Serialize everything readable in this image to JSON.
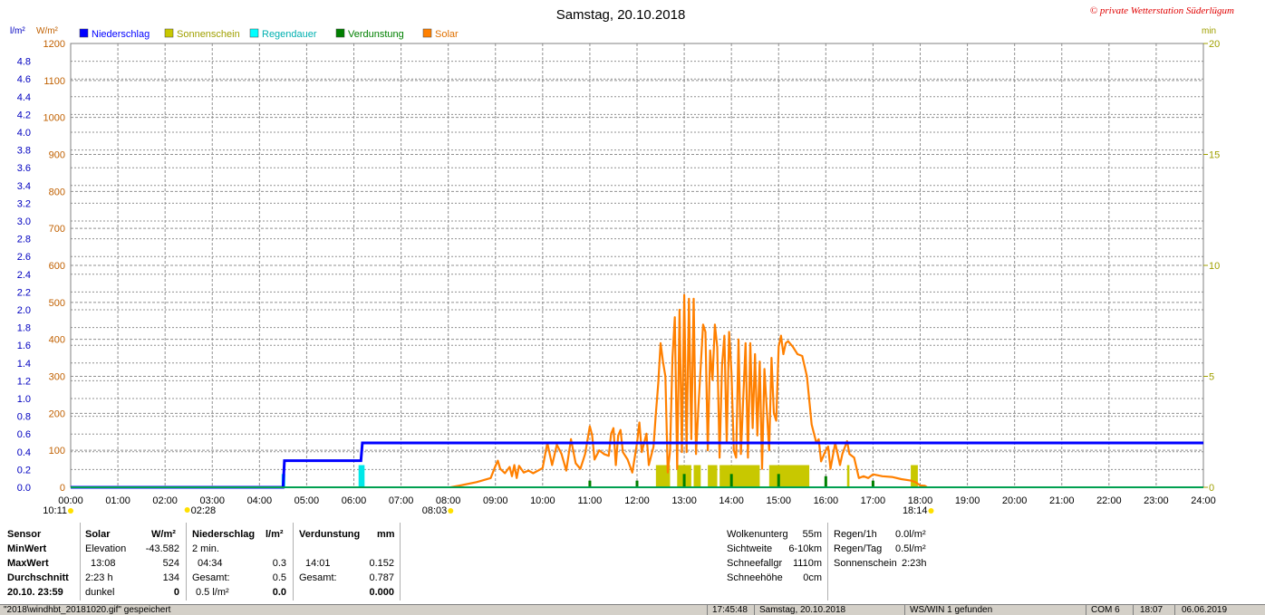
{
  "title": "Samstag, 20.10.2018",
  "copyright": "© private Wetterstation Süderlügum",
  "units": {
    "left1": "l/m²",
    "left2": "W/m²",
    "right": "min"
  },
  "legend": [
    {
      "label": "Niederschlag",
      "color": "#0000ff"
    },
    {
      "label": "Sonnenschein",
      "color": "#c8c800"
    },
    {
      "label": "Regendauer",
      "color": "#00ffff"
    },
    {
      "label": "Verdunstung",
      "color": "#008000"
    },
    {
      "label": "Solar",
      "color": "#ff8000"
    }
  ],
  "colors": {
    "precip": "#0000ff",
    "sun": "#c8c800",
    "rainDur": "#00e8e8",
    "evap": "#008000",
    "solar": "#ff8000",
    "grid": "#909090",
    "axisSolar": "#c06000",
    "axisPrecip": "#0000c0",
    "axisMin": "#a0a000"
  },
  "chart_data": {
    "type": "line",
    "x_range": [
      0,
      24
    ],
    "x_ticks": [
      "00:00",
      "01:00",
      "02:00",
      "03:00",
      "04:00",
      "05:00",
      "06:00",
      "07:00",
      "08:00",
      "09:00",
      "10:00",
      "11:00",
      "12:00",
      "13:00",
      "14:00",
      "15:00",
      "16:00",
      "17:00",
      "18:00",
      "19:00",
      "20:00",
      "21:00",
      "22:00",
      "23:00",
      "24:00"
    ],
    "y_precip_ticks": [
      "0.0",
      "0.2",
      "0.4",
      "0.6",
      "0.8",
      "1.0",
      "1.2",
      "1.4",
      "1.6",
      "1.8",
      "2.0",
      "2.2",
      "2.4",
      "2.6",
      "2.8",
      "3.0",
      "3.2",
      "3.4",
      "3.6",
      "3.8",
      "4.0",
      "4.2",
      "4.4",
      "4.6",
      "4.8"
    ],
    "y_precip_range": [
      0,
      5.0
    ],
    "y_solar_ticks": [
      "0",
      "100",
      "200",
      "300",
      "400",
      "500",
      "600",
      "700",
      "800",
      "900",
      "1000",
      "1100",
      "1200"
    ],
    "y_solar_range": [
      0,
      1200
    ],
    "y_min_ticks": [
      "0",
      "5",
      "10",
      "15",
      "20"
    ],
    "y_min_range": [
      0,
      20
    ],
    "grid": true,
    "precip": [
      [
        0,
        0
      ],
      [
        4.5,
        0
      ],
      [
        4.53,
        0.3
      ],
      [
        6.15,
        0.3
      ],
      [
        6.18,
        0.5
      ],
      [
        24,
        0.5
      ]
    ],
    "rain_duration": [
      [
        4.47,
        0.6
      ],
      [
        6.1,
        1.0
      ],
      [
        6.15,
        1.0
      ]
    ],
    "evaporation": [
      [
        11.0,
        0.3
      ],
      [
        12.0,
        0.3
      ],
      [
        13.0,
        0.6
      ],
      [
        14.0,
        0.6
      ],
      [
        15.0,
        0.6
      ],
      [
        16.0,
        0.5
      ],
      [
        17.0,
        0.3
      ]
    ],
    "sunshine": [
      [
        12.4,
        12.7,
        1.0
      ],
      [
        12.85,
        13.15,
        1.0
      ],
      [
        13.2,
        13.35,
        1.0
      ],
      [
        13.5,
        13.7,
        1.0
      ],
      [
        13.75,
        14.6,
        1.0
      ],
      [
        14.8,
        15.65,
        1.0
      ],
      [
        16.45,
        16.5,
        1.0
      ],
      [
        17.8,
        17.95,
        1.0
      ]
    ],
    "solar": [
      [
        8.05,
        0
      ],
      [
        8.3,
        6
      ],
      [
        8.6,
        14
      ],
      [
        8.9,
        25
      ],
      [
        9.0,
        58
      ],
      [
        9.05,
        72
      ],
      [
        9.1,
        50
      ],
      [
        9.2,
        38
      ],
      [
        9.3,
        55
      ],
      [
        9.35,
        30
      ],
      [
        9.4,
        60
      ],
      [
        9.45,
        25
      ],
      [
        9.5,
        58
      ],
      [
        9.6,
        40
      ],
      [
        9.7,
        45
      ],
      [
        9.8,
        38
      ],
      [
        10.0,
        52
      ],
      [
        10.1,
        120
      ],
      [
        10.2,
        60
      ],
      [
        10.3,
        115
      ],
      [
        10.4,
        90
      ],
      [
        10.5,
        45
      ],
      [
        10.6,
        130
      ],
      [
        10.7,
        65
      ],
      [
        10.8,
        50
      ],
      [
        10.9,
        90
      ],
      [
        11.0,
        165
      ],
      [
        11.05,
        140
      ],
      [
        11.1,
        75
      ],
      [
        11.2,
        100
      ],
      [
        11.3,
        90
      ],
      [
        11.4,
        85
      ],
      [
        11.45,
        145
      ],
      [
        11.5,
        160
      ],
      [
        11.55,
        60
      ],
      [
        11.6,
        140
      ],
      [
        11.65,
        155
      ],
      [
        11.7,
        95
      ],
      [
        11.8,
        75
      ],
      [
        11.9,
        40
      ],
      [
        12.0,
        120
      ],
      [
        12.05,
        175
      ],
      [
        12.1,
        95
      ],
      [
        12.2,
        145
      ],
      [
        12.25,
        60
      ],
      [
        12.35,
        110
      ],
      [
        12.4,
        200
      ],
      [
        12.45,
        280
      ],
      [
        12.5,
        390
      ],
      [
        12.55,
        340
      ],
      [
        12.6,
        300
      ],
      [
        12.65,
        40
      ],
      [
        12.7,
        100
      ],
      [
        12.75,
        350
      ],
      [
        12.8,
        460
      ],
      [
        12.85,
        50
      ],
      [
        12.9,
        480
      ],
      [
        12.95,
        95
      ],
      [
        13.0,
        520
      ],
      [
        13.05,
        95
      ],
      [
        13.1,
        510
      ],
      [
        13.15,
        130
      ],
      [
        13.2,
        510
      ],
      [
        13.25,
        90
      ],
      [
        13.3,
        215
      ],
      [
        13.4,
        440
      ],
      [
        13.45,
        420
      ],
      [
        13.5,
        100
      ],
      [
        13.55,
        370
      ],
      [
        13.6,
        290
      ],
      [
        13.65,
        440
      ],
      [
        13.7,
        380
      ],
      [
        13.75,
        80
      ],
      [
        13.8,
        330
      ],
      [
        13.85,
        410
      ],
      [
        13.9,
        120
      ],
      [
        13.95,
        420
      ],
      [
        14.0,
        310
      ],
      [
        14.05,
        100
      ],
      [
        14.1,
        80
      ],
      [
        14.15,
        400
      ],
      [
        14.2,
        90
      ],
      [
        14.3,
        390
      ],
      [
        14.35,
        80
      ],
      [
        14.4,
        390
      ],
      [
        14.45,
        160
      ],
      [
        14.5,
        360
      ],
      [
        14.55,
        140
      ],
      [
        14.6,
        340
      ],
      [
        14.65,
        50
      ],
      [
        14.7,
        320
      ],
      [
        14.8,
        100
      ],
      [
        14.85,
        350
      ],
      [
        14.9,
        200
      ],
      [
        14.95,
        180
      ],
      [
        15.0,
        380
      ],
      [
        15.05,
        410
      ],
      [
        15.1,
        360
      ],
      [
        15.15,
        390
      ],
      [
        15.2,
        395
      ],
      [
        15.3,
        380
      ],
      [
        15.4,
        360
      ],
      [
        15.5,
        355
      ],
      [
        15.6,
        300
      ],
      [
        15.7,
        170
      ],
      [
        15.8,
        120
      ],
      [
        15.85,
        130
      ],
      [
        15.9,
        70
      ],
      [
        16.0,
        100
      ],
      [
        16.05,
        110
      ],
      [
        16.1,
        50
      ],
      [
        16.2,
        120
      ],
      [
        16.3,
        60
      ],
      [
        16.35,
        90
      ],
      [
        16.45,
        125
      ],
      [
        16.5,
        90
      ],
      [
        16.6,
        80
      ],
      [
        16.7,
        25
      ],
      [
        16.8,
        30
      ],
      [
        16.9,
        25
      ],
      [
        17.0,
        35
      ],
      [
        17.2,
        30
      ],
      [
        17.4,
        28
      ],
      [
        17.6,
        22
      ],
      [
        17.8,
        18
      ],
      [
        17.9,
        14
      ],
      [
        18.0,
        5
      ],
      [
        18.1,
        4
      ],
      [
        18.15,
        0
      ]
    ],
    "time_markers": [
      {
        "label": "10:11",
        "x": 0.0,
        "row": 1,
        "side": "left"
      },
      {
        "label": "02:28",
        "x": 2.47,
        "row": 1,
        "side": "right"
      },
      {
        "label": "08:03",
        "x": 8.05,
        "row": 1,
        "side": "left"
      },
      {
        "label": "18:14",
        "x": 18.23,
        "row": 1,
        "side": "left"
      }
    ]
  },
  "stats": {
    "sensor": {
      "header": "Sensor",
      "rows": [
        "MinWert",
        "MaxWert",
        "Durchschnitt",
        "20.10. 23:59"
      ]
    },
    "solar": {
      "header": "Solar",
      "unit": "W/m²",
      "rows": [
        [
          "Elevation",
          "-43.582"
        ],
        [
          "13:08",
          "524"
        ],
        [
          "2:23 h",
          "134"
        ],
        [
          "dunkel",
          "0"
        ]
      ]
    },
    "niederschlag": {
      "header": "Niederschlag",
      "unit": "l/m²",
      "rows": [
        [
          "2 min.",
          ""
        ],
        [
          "04:34",
          "0.3"
        ],
        [
          "Gesamt:",
          "0.5"
        ],
        [
          "0.5 l/m²",
          "0.0"
        ]
      ]
    },
    "verdunstung": {
      "header": "Verdunstung",
      "unit": "mm",
      "rows": [
        [
          "",
          ""
        ],
        [
          "14:01",
          "0.152"
        ],
        [
          "Gesamt:",
          "0.787"
        ],
        [
          "",
          "0.000"
        ]
      ]
    },
    "weather": [
      [
        "Wolkenunterg",
        "55m"
      ],
      [
        "Sichtweite",
        "6-10km"
      ],
      [
        "Schneefallgr",
        "1110m"
      ],
      [
        "Schneehöhe",
        "0cm"
      ]
    ],
    "rain": [
      [
        "Regen/1h",
        "0.0l/m²"
      ],
      [
        "Regen/Tag",
        "0.5l/m²"
      ],
      [
        "Sonnenschein",
        "2:23h"
      ]
    ]
  },
  "statusbar": {
    "file": "\"2018\\windhbt_20181020.gif\"  gespeichert",
    "time": "17:45:48",
    "date": "Samstag, 20.10.2018",
    "device": "WS/WIN 1 gefunden",
    "port": "COM 6",
    "clock": "18:07",
    "date2": "06.06.2019"
  }
}
